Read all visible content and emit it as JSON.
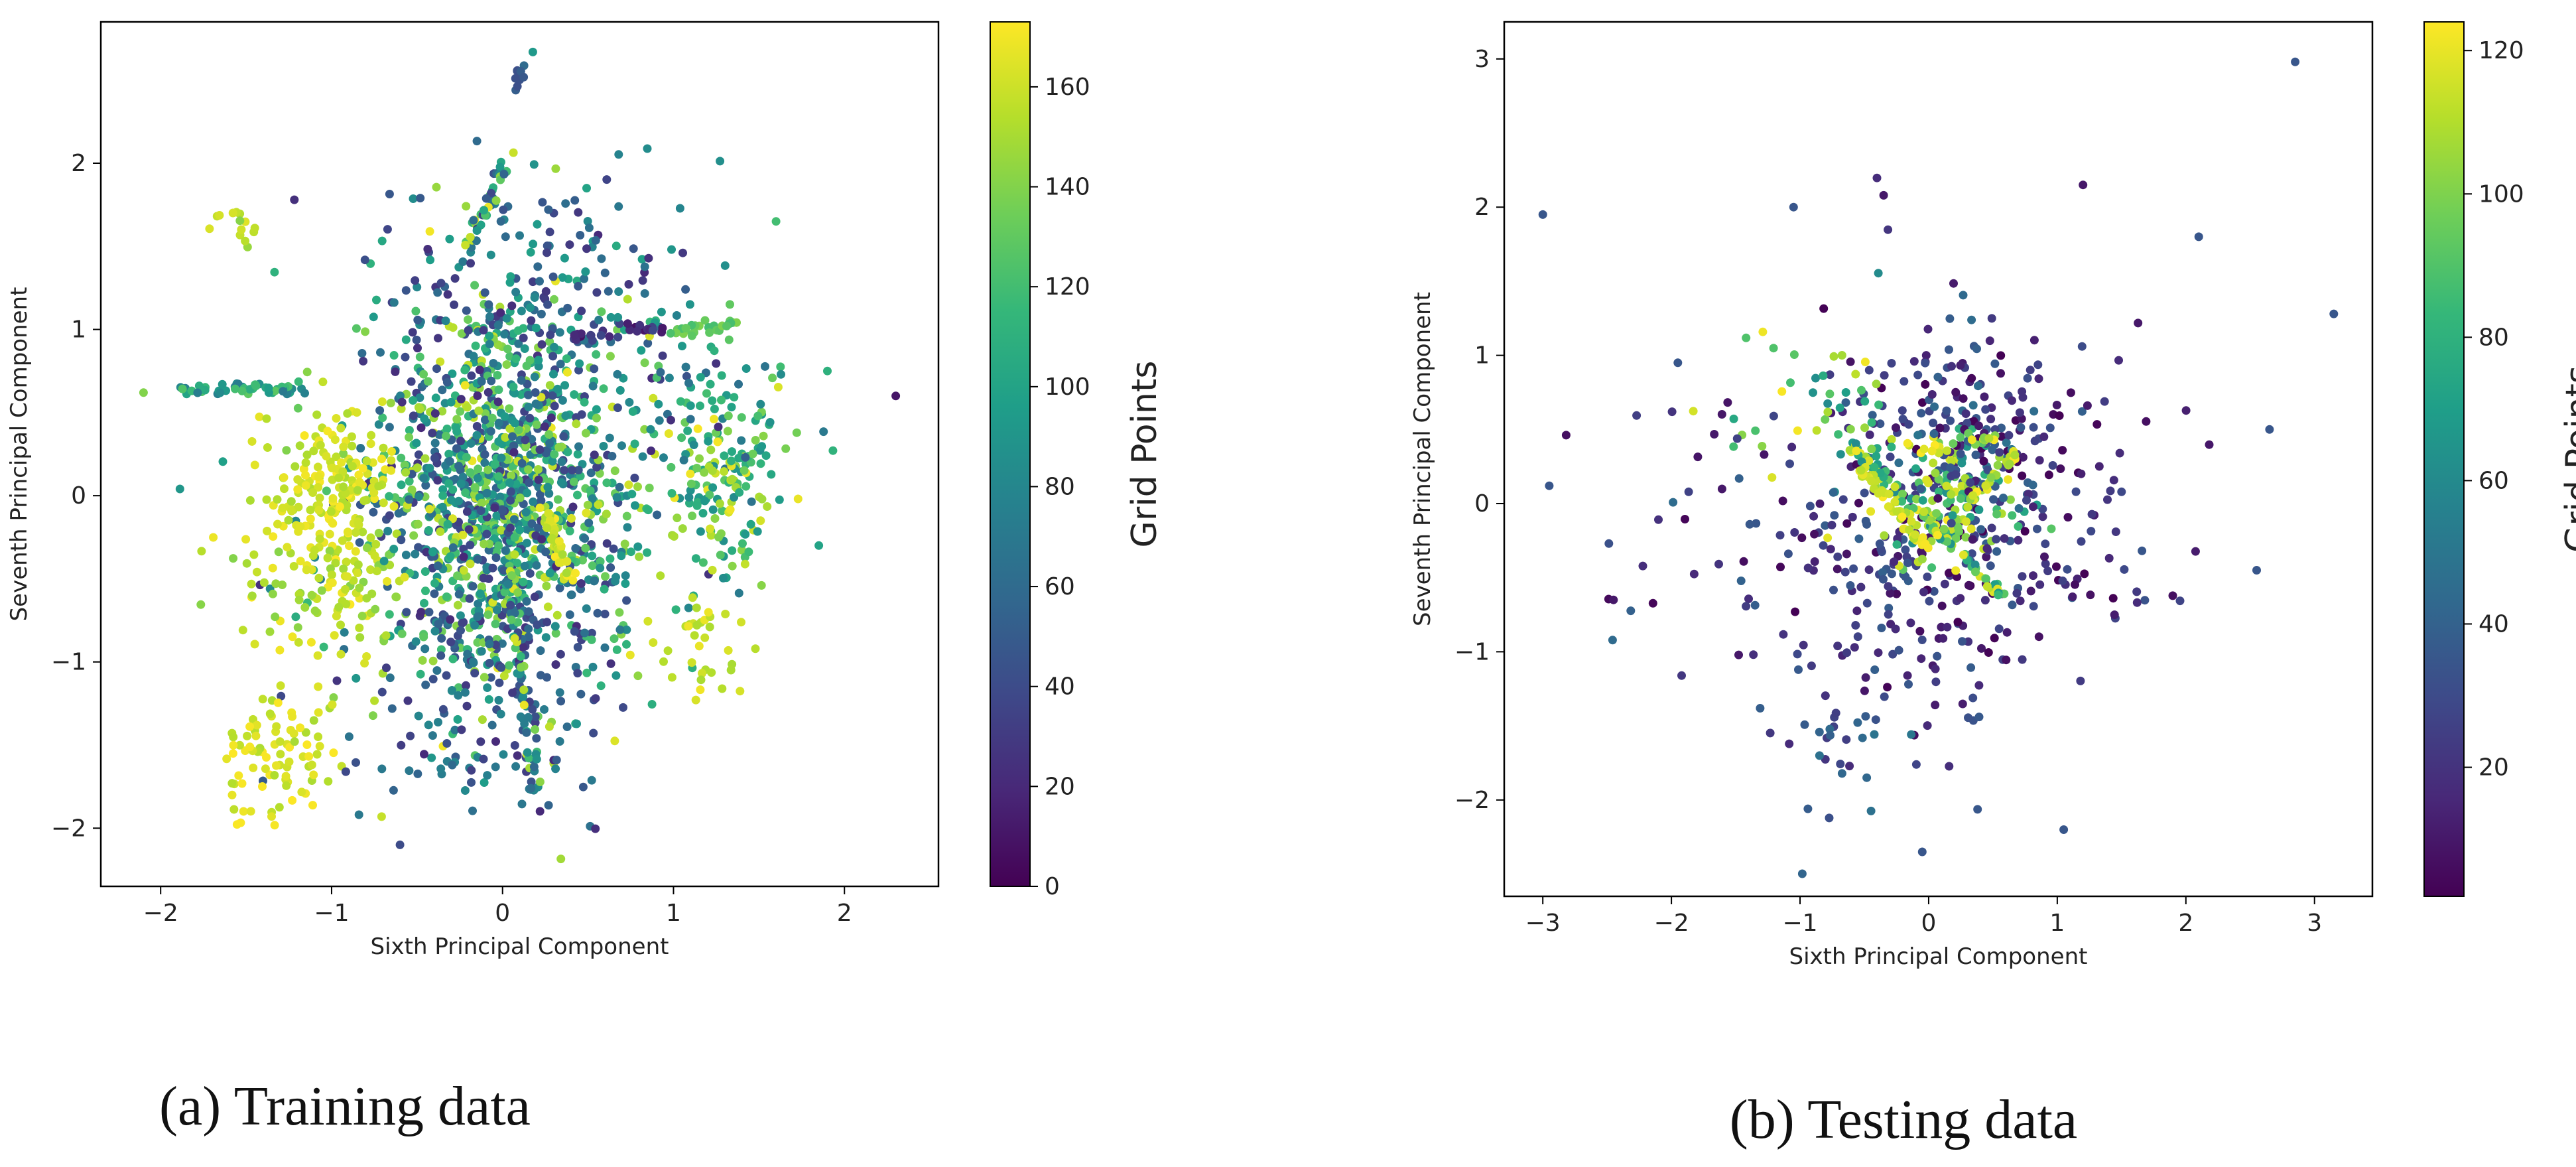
{
  "colors": {
    "viridis": [
      "#440154",
      "#482878",
      "#3e4989",
      "#31688e",
      "#26828e",
      "#1f9e89",
      "#35b779",
      "#6ece58",
      "#b5de2b",
      "#fde725"
    ]
  },
  "chart_data": [
    {
      "type": "scatter",
      "caption": "(a) Training data",
      "xlabel": "Sixth Principal Component",
      "ylabel": "Seventh Principal Component",
      "xlim": [
        -2.35,
        2.55
      ],
      "ylim": [
        -2.35,
        2.85
      ],
      "xticks": [
        -2,
        -1,
        0,
        1,
        2
      ],
      "yticks": [
        -2,
        -1,
        0,
        1,
        2
      ],
      "colorbar": {
        "label": "Grid Points",
        "min": 0,
        "max": 173,
        "ticks": [
          0,
          20,
          40,
          60,
          80,
          100,
          120,
          140,
          160
        ]
      },
      "clusters": [
        {
          "cx": 0.0,
          "cy": 0.0,
          "sx": 0.32,
          "sy": 0.55,
          "n": 900,
          "c": [
            30,
            160
          ]
        },
        {
          "cx": 0.0,
          "cy": 0.0,
          "sx": 0.6,
          "sy": 0.8,
          "n": 450,
          "c": [
            20,
            170
          ]
        },
        {
          "cx": -1.0,
          "cy": 0.0,
          "sx": 0.2,
          "sy": 0.25,
          "n": 180,
          "c": [
            150,
            173
          ]
        },
        {
          "cx": -1.05,
          "cy": -0.55,
          "sx": 0.25,
          "sy": 0.25,
          "n": 100,
          "c": [
            140,
            170
          ]
        },
        {
          "cx": -1.3,
          "cy": -1.55,
          "sx": 0.18,
          "sy": 0.2,
          "n": 90,
          "c": [
            150,
            173
          ]
        },
        {
          "cx": 1.3,
          "cy": 0.0,
          "sx": 0.15,
          "sy": 0.25,
          "n": 130,
          "c": [
            80,
            173
          ]
        },
        {
          "cx": 1.15,
          "cy": -0.95,
          "sx": 0.12,
          "sy": 0.2,
          "n": 35,
          "c": [
            150,
            170
          ]
        },
        {
          "cx": 1.2,
          "cy": 0.6,
          "sx": 0.3,
          "sy": 0.25,
          "n": 60,
          "c": [
            60,
            140
          ]
        },
        {
          "cx": -1.5,
          "cy": 1.65,
          "sx": 0.15,
          "sy": 0.08,
          "n": 14,
          "c": [
            140,
            173
          ]
        },
        {
          "cx": 0.2,
          "cy": 1.0,
          "sx": 0.5,
          "sy": 0.5,
          "n": 180,
          "c": [
            20,
            100
          ]
        },
        {
          "cx": 0.0,
          "cy": -1.2,
          "sx": 0.35,
          "sy": 0.4,
          "n": 140,
          "c": [
            20,
            80
          ]
        }
      ],
      "lines": [
        {
          "from": [
            -1.9,
            0.64
          ],
          "to": [
            -1.15,
            0.64
          ],
          "n": 50,
          "c": [
            70,
            130
          ]
        },
        {
          "from": [
            0.0,
            -0.3
          ],
          "to": [
            0.2,
            -1.8
          ],
          "n": 70,
          "c": [
            30,
            173
          ]
        },
        {
          "from": [
            -0.2,
            1.5
          ],
          "to": [
            0.05,
            2.05
          ],
          "n": 40,
          "c": [
            30,
            173
          ]
        },
        {
          "from": [
            0.4,
            0.95
          ],
          "to": [
            0.95,
            1.0
          ],
          "n": 25,
          "c": [
            5,
            40
          ]
        },
        {
          "from": [
            1.0,
            0.97
          ],
          "to": [
            1.4,
            1.05
          ],
          "n": 30,
          "c": [
            120,
            140
          ]
        },
        {
          "from": [
            0.1,
            2.45
          ],
          "to": [
            0.12,
            2.6
          ],
          "n": 10,
          "c": [
            40,
            60
          ]
        },
        {
          "from": [
            0.25,
            -0.1
          ],
          "to": [
            0.4,
            -0.5
          ],
          "n": 40,
          "c": [
            150,
            173
          ]
        }
      ],
      "extra_points": [
        {
          "x": -2.1,
          "y": 0.62,
          "c": 140
        },
        {
          "x": 2.3,
          "y": 0.6,
          "c": 10
        },
        {
          "x": 1.6,
          "y": 1.65,
          "c": 120
        },
        {
          "x": -0.6,
          "y": -2.1,
          "c": 40
        },
        {
          "x": 1.9,
          "y": 0.75,
          "c": 110
        },
        {
          "x": 1.85,
          "y": -0.3,
          "c": 100
        }
      ]
    },
    {
      "type": "scatter",
      "caption": "(b) Testing data",
      "xlabel": "Sixth Principal Component",
      "ylabel": "Seventh Principal Component",
      "xlim": [
        -3.3,
        3.45
      ],
      "ylim": [
        -2.65,
        3.25
      ],
      "xticks": [
        -3,
        -2,
        -1,
        0,
        1,
        2,
        3
      ],
      "yticks": [
        -2,
        -1,
        0,
        1,
        2,
        3
      ],
      "colorbar": {
        "label": "Grid Points",
        "min": 2,
        "max": 124,
        "ticks": [
          20,
          40,
          60,
          80,
          100,
          120
        ]
      },
      "clusters": [
        {
          "cx": 0.0,
          "cy": -0.2,
          "sx": 0.6,
          "sy": 0.75,
          "n": 330,
          "c": [
            2,
            40
          ]
        },
        {
          "cx": 0.1,
          "cy": 0.05,
          "sx": 0.3,
          "sy": 0.25,
          "n": 140,
          "c": [
            60,
            124
          ]
        },
        {
          "cx": 0.3,
          "cy": 0.5,
          "sx": 0.3,
          "sy": 0.35,
          "n": 110,
          "c": [
            2,
            50
          ]
        },
        {
          "cx": -0.7,
          "cy": -1.7,
          "sx": 0.2,
          "sy": 0.3,
          "n": 20,
          "c": [
            20,
            50
          ]
        },
        {
          "cx": -0.9,
          "cy": 0.7,
          "sx": 0.35,
          "sy": 0.3,
          "n": 40,
          "c": [
            60,
            124
          ]
        },
        {
          "cx": 1.3,
          "cy": -0.1,
          "sx": 0.5,
          "sy": 0.5,
          "n": 50,
          "c": [
            2,
            40
          ]
        },
        {
          "cx": -1.5,
          "cy": -0.3,
          "sx": 0.5,
          "sy": 0.5,
          "n": 40,
          "c": [
            2,
            45
          ]
        }
      ],
      "lines": [
        {
          "from": [
            -0.6,
            0.4
          ],
          "to": [
            0.6,
            -0.65
          ],
          "n": 70,
          "c": [
            60,
            124
          ]
        },
        {
          "from": [
            -0.55,
            0.25
          ],
          "to": [
            0.0,
            -0.3
          ],
          "n": 40,
          "c": [
            110,
            124
          ]
        },
        {
          "from": [
            0.3,
            0.0
          ],
          "to": [
            0.7,
            0.35
          ],
          "n": 25,
          "c": [
            100,
            124
          ]
        },
        {
          "from": [
            -0.1,
            0.35
          ],
          "to": [
            0.55,
            0.45
          ],
          "n": 20,
          "c": [
            90,
            124
          ]
        }
      ],
      "extra_points": [
        {
          "x": -3.0,
          "y": 1.95,
          "c": 35
        },
        {
          "x": -2.95,
          "y": 0.12,
          "c": 35
        },
        {
          "x": 2.85,
          "y": 2.98,
          "c": 35
        },
        {
          "x": 3.15,
          "y": 1.28,
          "c": 35
        },
        {
          "x": 1.2,
          "y": 2.15,
          "c": 10
        },
        {
          "x": 2.1,
          "y": 1.8,
          "c": 35
        },
        {
          "x": 1.05,
          "y": -2.2,
          "c": 35
        },
        {
          "x": 2.65,
          "y": 0.5,
          "c": 35
        },
        {
          "x": 2.55,
          "y": -0.45,
          "c": 35
        },
        {
          "x": -2.45,
          "y": -0.65,
          "c": 10
        },
        {
          "x": -0.05,
          "y": -2.35,
          "c": 35
        },
        {
          "x": -1.95,
          "y": 0.95,
          "c": 35
        },
        {
          "x": -1.05,
          "y": 2.0,
          "c": 35
        },
        {
          "x": -0.35,
          "y": 2.08,
          "c": 10
        }
      ]
    }
  ]
}
